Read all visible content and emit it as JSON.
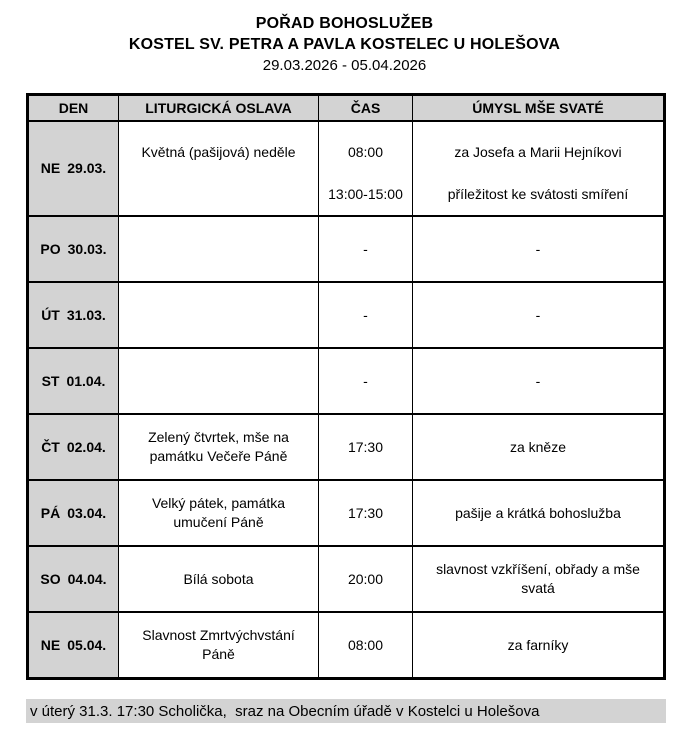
{
  "header": {
    "title": "POŘAD BOHOSLUŽEB",
    "subtitle": "KOSTEL SV. PETRA A PAVLA KOSTELEC U HOLEŠOVA",
    "date_range": "29.03.2026 - 05.04.2026"
  },
  "table": {
    "headers": [
      "DEN",
      "LITURGICKÁ OSLAVA",
      "ČAS",
      "ÚMYSL MŠE SVATÉ"
    ],
    "rows": [
      {
        "day": "NE",
        "date": "29.03.",
        "liturgy": "Květná (pašijová) neděle",
        "time1": "08:00",
        "time2": "13:00-15:00",
        "intention1": "za Josefa a Marii Hejníkovi",
        "intention2": "příležitost ke svátosti smíření"
      },
      {
        "day": "PO",
        "date": "30.03.",
        "liturgy": "",
        "time": "-",
        "intention": "-"
      },
      {
        "day": "ÚT",
        "date": "31.03.",
        "liturgy": "",
        "time": "-",
        "intention": "-"
      },
      {
        "day": "ST",
        "date": "01.04.",
        "liturgy": "",
        "time": "-",
        "intention": "-"
      },
      {
        "day": "ČT",
        "date": "02.04.",
        "liturgy": "Zelený čtvrtek, mše na památku Večeře Páně",
        "time": "17:30",
        "intention": "za kněze"
      },
      {
        "day": "PÁ",
        "date": "03.04.",
        "liturgy": "Velký pátek, památka umučení Páně",
        "time": "17:30",
        "intention": "pašije a krátká bohoslužba"
      },
      {
        "day": "SO",
        "date": "04.04.",
        "liturgy": "Bílá sobota",
        "time": "20:00",
        "intention": "slavnost vzkříšení, obřady a mše svatá"
      },
      {
        "day": "NE",
        "date": "05.04.",
        "liturgy": "Slavnost Zmrtvýchvstání Páně",
        "time": "08:00",
        "intention": "za farníky"
      }
    ]
  },
  "footer": {
    "note": "v úterý 31.3. 17:30 Scholička,  sraz na Obecním úřadě v Kostelci u Holešova"
  },
  "colors": {
    "header_bg": "#d3d3d3",
    "border": "#000000",
    "page_bg": "#ffffff"
  }
}
